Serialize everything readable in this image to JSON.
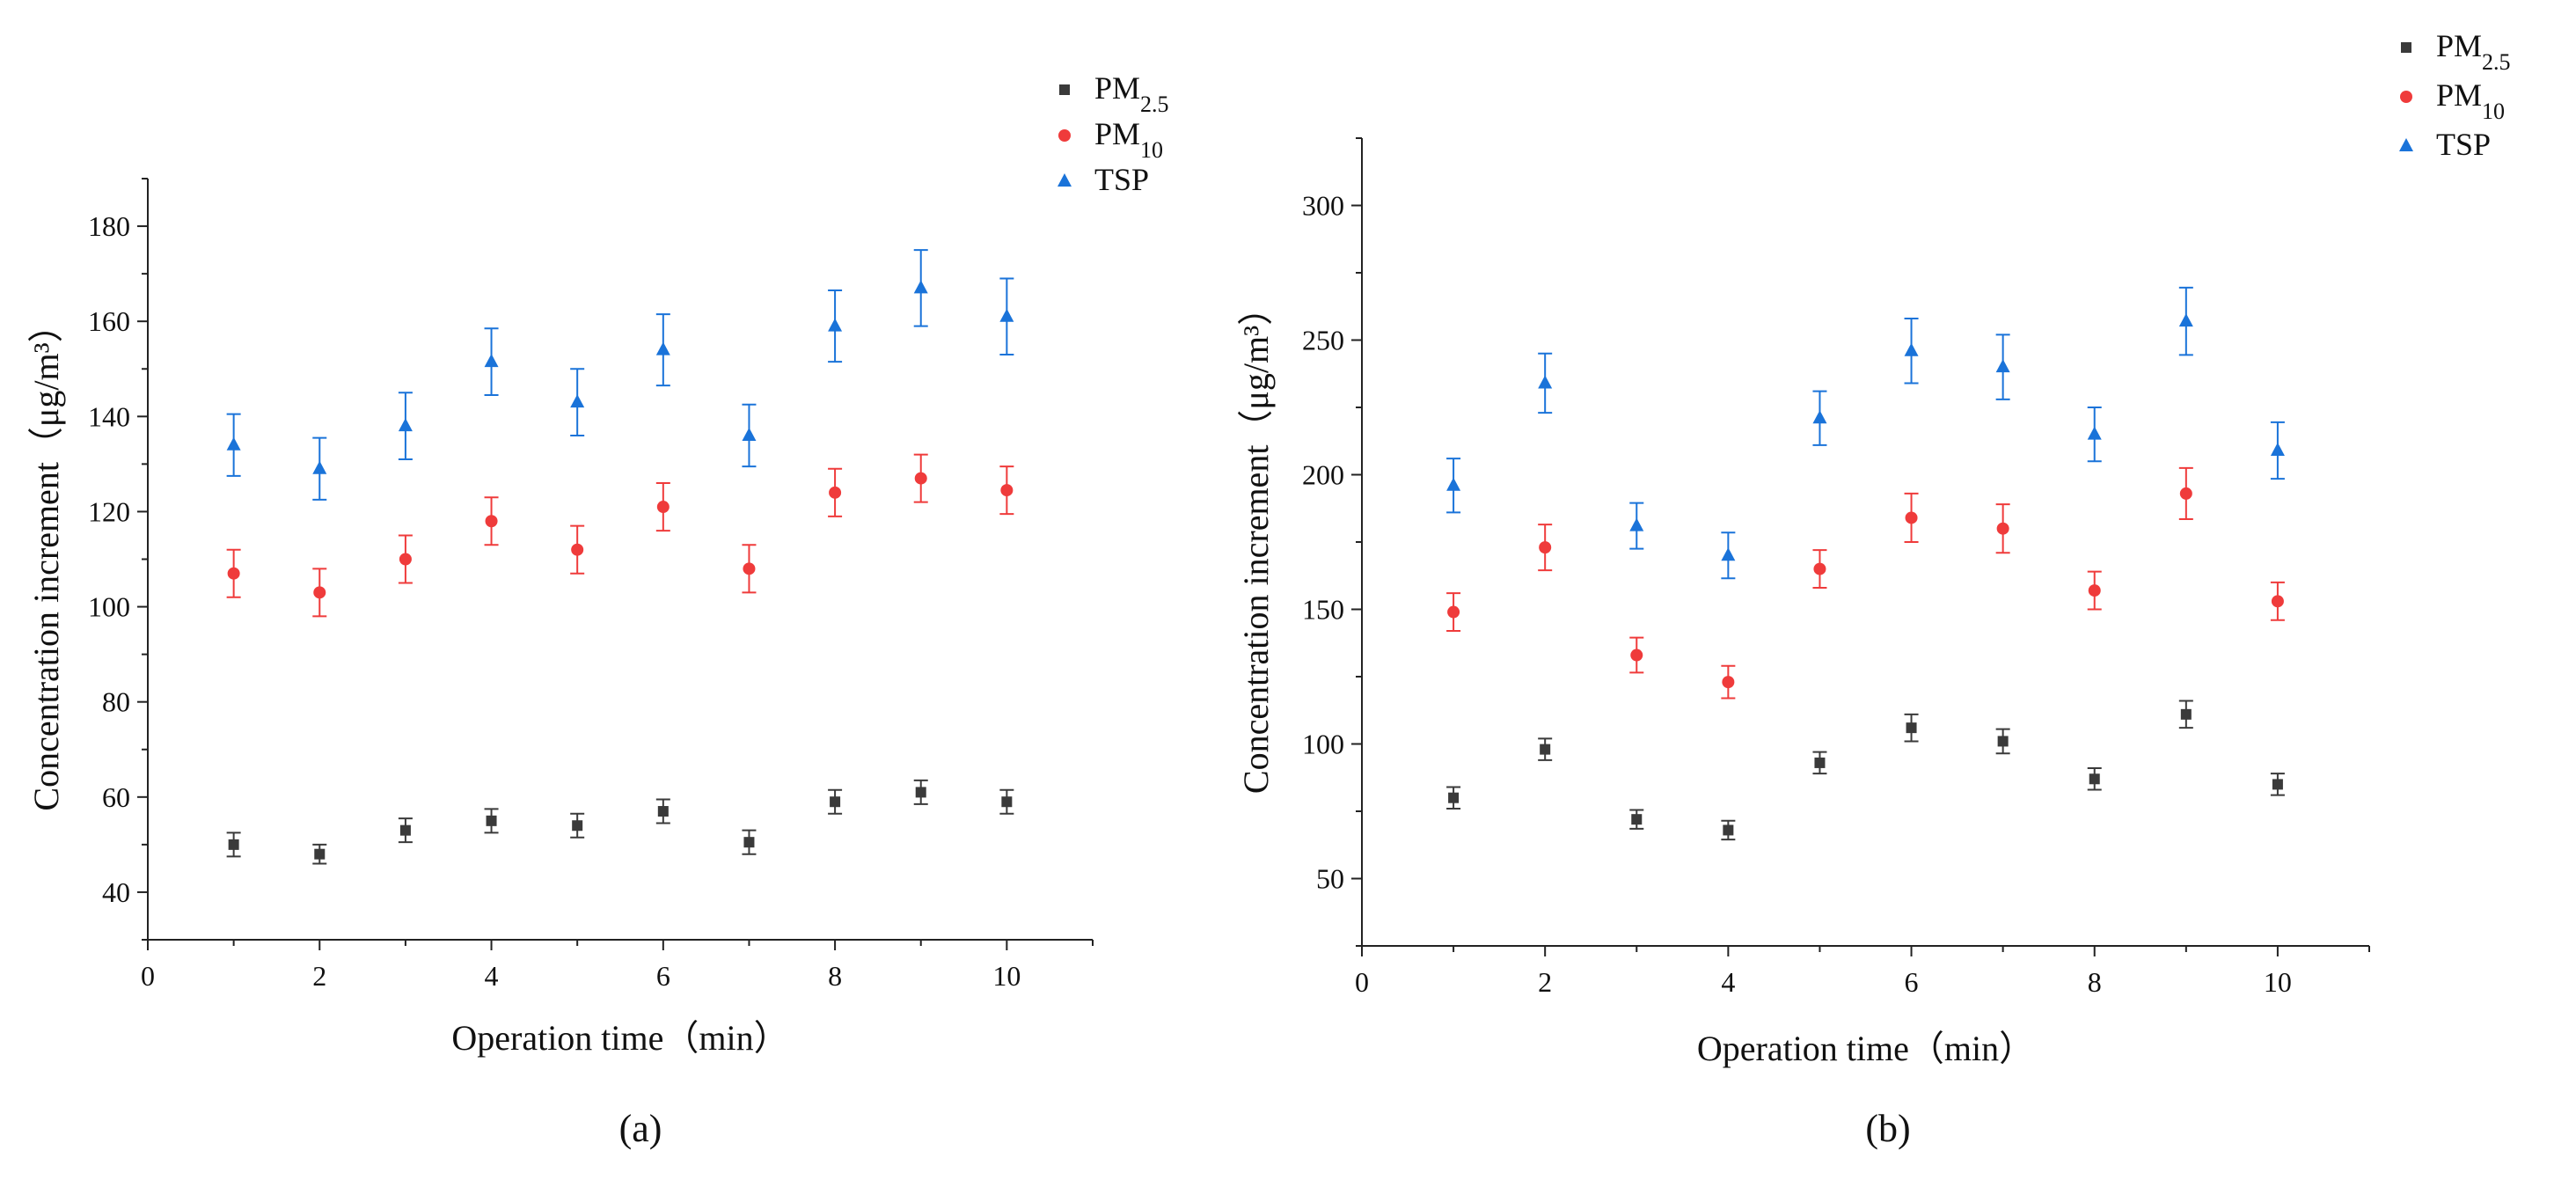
{
  "colors": {
    "pm25": "#3a3a3a",
    "pm10": "#ef3b3b",
    "tsp": "#1a73d9",
    "axis": "#222222"
  },
  "chart_data": [
    {
      "type": "scatter",
      "panel_label": "(a)",
      "xlabel": "Operation time（min）",
      "ylabel": "Concentration increment（μg/m³）",
      "xlim": [
        0,
        11
      ],
      "ylim": [
        30,
        190
      ],
      "xticks": [
        0,
        2,
        4,
        6,
        8,
        10
      ],
      "yticks": [
        40,
        60,
        80,
        100,
        120,
        140,
        160,
        180
      ],
      "legend_position": "top-right",
      "x": [
        1,
        2,
        3,
        4,
        5,
        6,
        7,
        8,
        9,
        10
      ],
      "series": [
        {
          "name": "PM2.5",
          "label_main": "PM",
          "label_sub": "2.5",
          "marker": "square",
          "color_key": "pm25",
          "values": [
            50,
            48,
            53,
            55,
            54,
            57,
            50.5,
            59,
            61,
            59
          ],
          "errors": [
            2.5,
            2,
            2.5,
            2.5,
            2.5,
            2.5,
            2.5,
            2.5,
            2.5,
            2.5
          ]
        },
        {
          "name": "PM10",
          "label_main": "PM",
          "label_sub": "10",
          "marker": "circle",
          "color_key": "pm10",
          "values": [
            107,
            103,
            110,
            118,
            112,
            121,
            108,
            124,
            127,
            124.5
          ],
          "errors": [
            5,
            5,
            5,
            5,
            5,
            5,
            5,
            5,
            5,
            5
          ]
        },
        {
          "name": "TSP",
          "label_main": "TSP",
          "label_sub": "",
          "marker": "triangle",
          "color_key": "tsp",
          "values": [
            134,
            129,
            138,
            151.5,
            143,
            154,
            136,
            159,
            167,
            161
          ],
          "errors": [
            6.5,
            6.5,
            7,
            7,
            7,
            7.5,
            6.5,
            7.5,
            8,
            8
          ]
        }
      ]
    },
    {
      "type": "scatter",
      "panel_label": "(b)",
      "xlabel": "Operation time（min）",
      "ylabel": "Concentration increment（μg/m³）",
      "xlim": [
        0,
        11
      ],
      "ylim": [
        25,
        325
      ],
      "xticks": [
        0,
        2,
        4,
        6,
        8,
        10
      ],
      "yticks": [
        50,
        100,
        150,
        200,
        250,
        300
      ],
      "legend_position": "top-right",
      "x": [
        1,
        2,
        3,
        4,
        5,
        6,
        7,
        8,
        9,
        10
      ],
      "series": [
        {
          "name": "PM2.5",
          "label_main": "PM",
          "label_sub": "2.5",
          "marker": "square",
          "color_key": "pm25",
          "values": [
            80,
            98,
            72,
            68,
            93,
            106,
            101,
            87,
            111,
            85
          ],
          "errors": [
            4,
            4,
            3.5,
            3.5,
            4,
            5,
            4.5,
            4,
            5,
            4
          ]
        },
        {
          "name": "PM10",
          "label_main": "PM",
          "label_sub": "10",
          "marker": "circle",
          "color_key": "pm10",
          "values": [
            149,
            173,
            133,
            123,
            165,
            184,
            180,
            157,
            193,
            153
          ],
          "errors": [
            7,
            8.5,
            6.5,
            6,
            7,
            9,
            9,
            7,
            9.5,
            7
          ]
        },
        {
          "name": "TSP",
          "label_main": "TSP",
          "label_sub": "",
          "marker": "triangle",
          "color_key": "tsp",
          "values": [
            196,
            234,
            181,
            170,
            221,
            246,
            240,
            215,
            257,
            209
          ],
          "errors": [
            10,
            11,
            8.5,
            8.5,
            10,
            12,
            12,
            10,
            12.5,
            10.5
          ]
        }
      ]
    }
  ]
}
